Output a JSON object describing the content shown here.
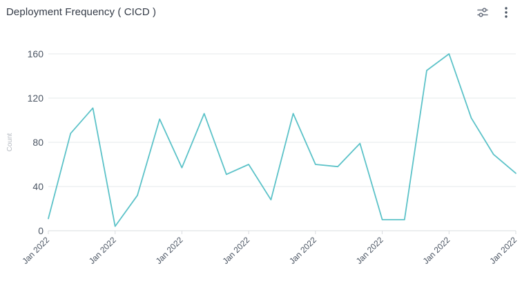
{
  "header": {
    "title": "Deployment Frequency ( CICD )",
    "filter_icon": "sliders-icon",
    "menu_icon": "more-vertical-icon"
  },
  "colors": {
    "line": "#5bc2c8",
    "grid": "#e6e8eb",
    "axis": "#d9dcdf"
  },
  "chart_data": {
    "type": "line",
    "title": "Deployment Frequency ( CICD )",
    "ylabel": "Count",
    "xlabel": "",
    "ylim": [
      0,
      160
    ],
    "yticks": [
      0,
      40,
      80,
      120,
      160
    ],
    "grid": true,
    "legend": "none",
    "xtick_labels": [
      "Jan 2022",
      "Jan 2022",
      "Jan 2022",
      "Jan 2022",
      "Jan 2022",
      "Jan 2022",
      "Jan 2022",
      "Jan 2022"
    ],
    "series": [
      {
        "values": [
          11,
          88,
          111,
          4,
          32,
          101,
          57,
          106,
          51,
          60,
          28,
          106,
          60,
          58,
          79,
          10,
          10,
          145,
          160,
          102,
          69,
          52
        ]
      }
    ]
  }
}
